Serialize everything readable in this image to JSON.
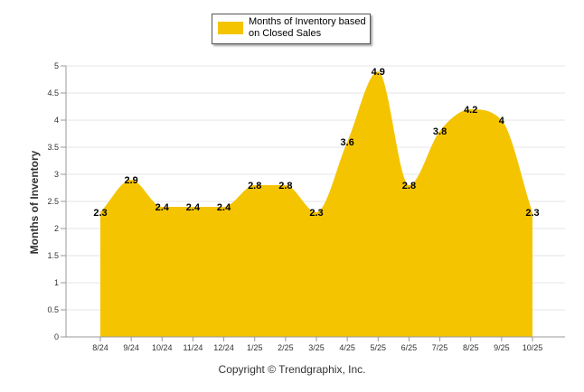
{
  "chart_data": {
    "type": "area",
    "title": "",
    "xlabel": "",
    "ylabel": "Months of Inventory",
    "categories": [
      "8/24",
      "9/24",
      "10/24",
      "11/24",
      "12/24",
      "1/25",
      "2/25",
      "3/25",
      "4/25",
      "5/25",
      "6/25",
      "7/25",
      "8/25",
      "9/25",
      "10/25"
    ],
    "series": [
      {
        "name": "Months of Inventory based on Closed Sales",
        "values": [
          2.3,
          2.9,
          2.4,
          2.4,
          2.4,
          2.8,
          2.8,
          2.3,
          3.6,
          4.9,
          2.8,
          3.8,
          4.2,
          4,
          2.3
        ],
        "color": "#F5C400"
      }
    ],
    "ylim": [
      0,
      5
    ],
    "yticks": [
      "0",
      "0.5",
      "1",
      "1.5",
      "2",
      "2.5",
      "3",
      "3.5",
      "4",
      "4.5",
      "5"
    ],
    "grid": true,
    "legend": {
      "position": "top-center",
      "label": "Months of Inventory based on Closed Sales"
    }
  },
  "footer": {
    "copyright": "Copyright © Trendgraphix, Inc."
  }
}
